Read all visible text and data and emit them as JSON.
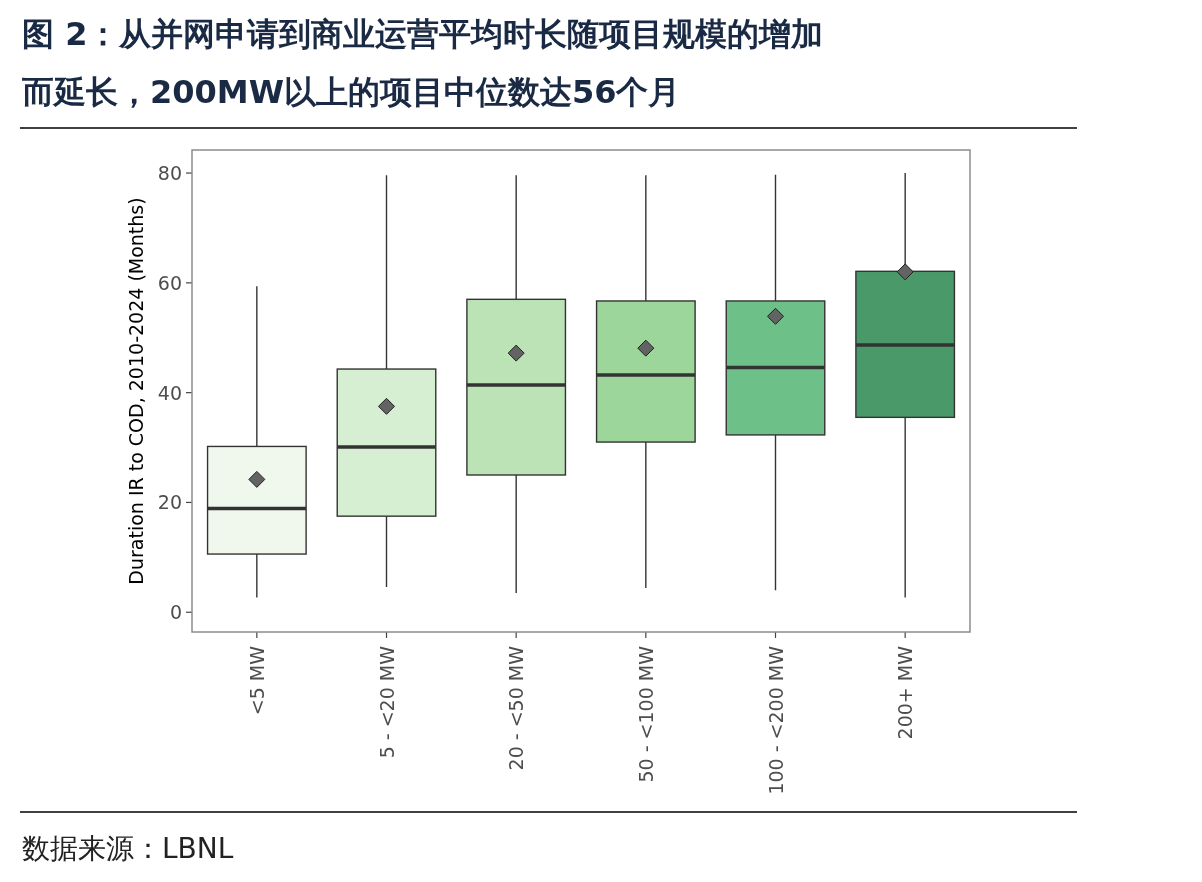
{
  "chart_data": {
    "type": "box",
    "title": "图 2：从并网申请到商业运营平均时长随项目规模的增加而延长，200MW以上的项目中位数达56个月",
    "ylabel": "Duration IR to COD, 2010-2024 (Months)",
    "annotations": [
      "数据来源：LBNL"
    ],
    "categories": [
      "<5 MW",
      "5 - <20 MW",
      "20 - <50 MW",
      "50 - <100 MW",
      "100 - <200 MW",
      "200+ MW"
    ],
    "colors": [
      "#f0f8ed",
      "#d6efd3",
      "#bbe3b6",
      "#9dd69a",
      "#6cc088",
      "#4a9a69"
    ],
    "boxes": [
      {
        "low": 2.7,
        "q1": 10.6,
        "median": 18.9,
        "q3": 30.2,
        "high": 59.4,
        "mean": 24.2
      },
      {
        "low": 4.6,
        "q1": 17.5,
        "median": 30.1,
        "q3": 44.3,
        "high": 79.6,
        "mean": 37.5
      },
      {
        "low": 3.5,
        "q1": 25.0,
        "median": 41.4,
        "q3": 57.0,
        "high": 79.6,
        "mean": 47.2
      },
      {
        "low": 4.4,
        "q1": 31.0,
        "median": 43.2,
        "q3": 56.7,
        "high": 79.6,
        "mean": 48.1
      },
      {
        "low": 4.0,
        "q1": 32.3,
        "median": 44.6,
        "q3": 56.7,
        "high": 79.7,
        "mean": 53.9
      },
      {
        "low": 2.7,
        "q1": 35.5,
        "median": 48.7,
        "q3": 62.1,
        "high": 80.0,
        "mean": 62.0
      }
    ],
    "ylim": [
      -3.6,
      84.2
    ],
    "yticks": [
      0,
      20,
      40,
      60,
      80
    ],
    "grid": false,
    "marker": "diamond"
  }
}
